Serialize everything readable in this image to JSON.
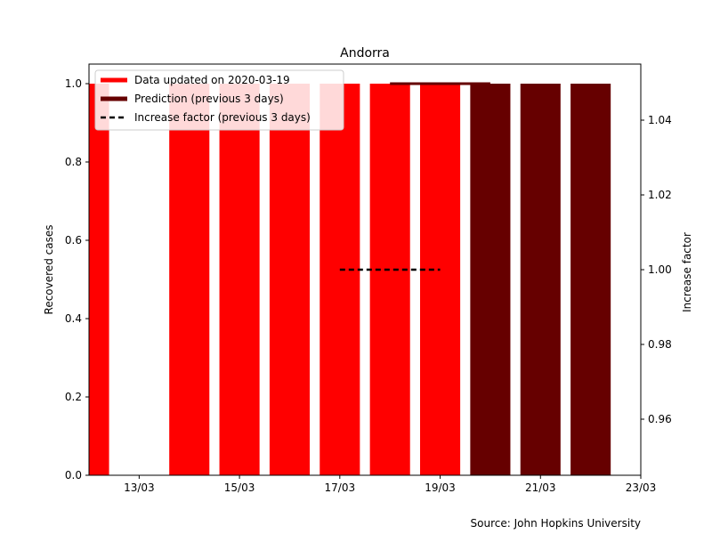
{
  "chart_data": {
    "type": "bar",
    "title": "Andorra",
    "ylabel": "Recovered cases",
    "y2label": "Increase factor",
    "source": "Source: John Hopkins University",
    "ylim": [
      0,
      1.05
    ],
    "y2lim": [
      0.945,
      1.055
    ],
    "xlim": [
      "2020-03-12",
      "2020-03-23"
    ],
    "x_ticks": [
      "13/03",
      "15/03",
      "17/03",
      "19/03",
      "21/03",
      "23/03"
    ],
    "y_ticks": [
      "0.0",
      "0.2",
      "0.4",
      "0.6",
      "0.8",
      "1.0"
    ],
    "y2_ticks": [
      "0.96",
      "0.98",
      "1.00",
      "1.02",
      "1.04"
    ],
    "colors": {
      "data": "#ff0000",
      "prediction": "#660000",
      "increase": "#000000"
    },
    "legend_position": "top-left",
    "series": [
      {
        "name": "Data updated on 2020-03-19",
        "kind": "bar",
        "dates": [
          "2020-03-12",
          "2020-03-13",
          "2020-03-14",
          "2020-03-15",
          "2020-03-16",
          "2020-03-17",
          "2020-03-18",
          "2020-03-19"
        ],
        "values": [
          1,
          0,
          1,
          1,
          1,
          1,
          1,
          1
        ]
      },
      {
        "name": "Prediction (previous 3 days)",
        "kind": "bar",
        "dates": [
          "2020-03-20",
          "2020-03-21",
          "2020-03-22"
        ],
        "values": [
          1,
          1,
          1
        ]
      },
      {
        "name": "Increase factor (previous 3 days)",
        "kind": "dashed-line",
        "axis": "right",
        "dates": [
          "2020-03-17",
          "2020-03-19"
        ],
        "values": [
          1.0,
          1.0
        ]
      }
    ],
    "prediction_level": {
      "dates": [
        "2020-03-18",
        "2020-03-20"
      ],
      "value": 1.0
    }
  }
}
